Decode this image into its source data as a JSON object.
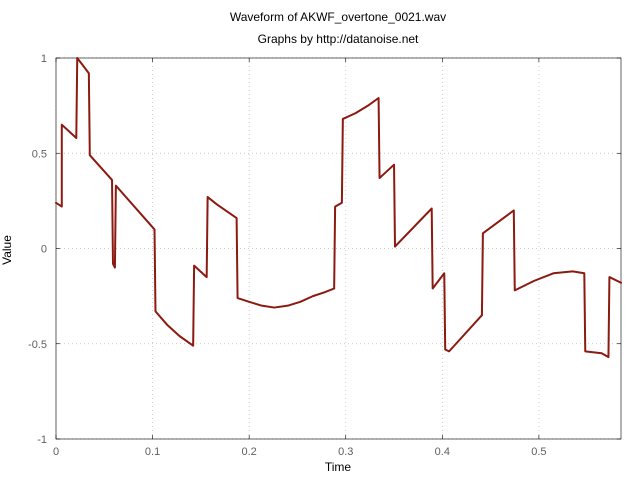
{
  "chart_data": {
    "type": "line",
    "title": "Waveform of AKWF_overtone_0021.wav",
    "subtitle": "Graphs by http://datanoise.net",
    "xlabel": "Time",
    "ylabel": "Value",
    "xlim": [
      0,
      0.585
    ],
    "ylim": [
      -1,
      1
    ],
    "xticks": [
      0,
      0.1,
      0.2,
      0.3,
      0.4,
      0.5
    ],
    "xtick_labels": [
      "0",
      "0.1",
      "0.2",
      "0.3",
      "0.4",
      "0.5"
    ],
    "yticks": [
      -1,
      -0.5,
      0,
      0.5,
      1
    ],
    "ytick_labels": [
      "-1",
      "-0.5",
      "0",
      "0.5",
      "1"
    ],
    "grid": true,
    "series": [
      {
        "color": "#8b1a10",
        "x": [
          0,
          0.006,
          0.006,
          0.021,
          0.022,
          0.034,
          0.035,
          0.058,
          0.059,
          0.061,
          0.062,
          0.102,
          0.103,
          0.115,
          0.128,
          0.142,
          0.143,
          0.156,
          0.157,
          0.167,
          0.187,
          0.188,
          0.2,
          0.213,
          0.226,
          0.24,
          0.253,
          0.266,
          0.278,
          0.288,
          0.289,
          0.296,
          0.297,
          0.31,
          0.323,
          0.334,
          0.335,
          0.35,
          0.351,
          0.389,
          0.39,
          0.402,
          0.403,
          0.407,
          0.441,
          0.442,
          0.474,
          0.475,
          0.495,
          0.515,
          0.535,
          0.547,
          0.548,
          0.565,
          0.572,
          0.573,
          0.585
        ],
        "y": [
          0.24,
          0.22,
          0.65,
          0.58,
          1.0,
          0.92,
          0.49,
          0.36,
          -0.08,
          -0.1,
          0.33,
          0.1,
          -0.33,
          -0.4,
          -0.46,
          -0.51,
          -0.09,
          -0.15,
          0.27,
          0.23,
          0.16,
          -0.26,
          -0.28,
          -0.3,
          -0.31,
          -0.3,
          -0.28,
          -0.25,
          -0.23,
          -0.21,
          0.22,
          0.24,
          0.68,
          0.71,
          0.75,
          0.79,
          0.37,
          0.44,
          0.01,
          0.21,
          -0.21,
          -0.13,
          -0.53,
          -0.54,
          -0.35,
          0.08,
          0.2,
          -0.22,
          -0.17,
          -0.13,
          -0.12,
          -0.13,
          -0.54,
          -0.55,
          -0.57,
          -0.15,
          -0.18
        ]
      }
    ]
  }
}
